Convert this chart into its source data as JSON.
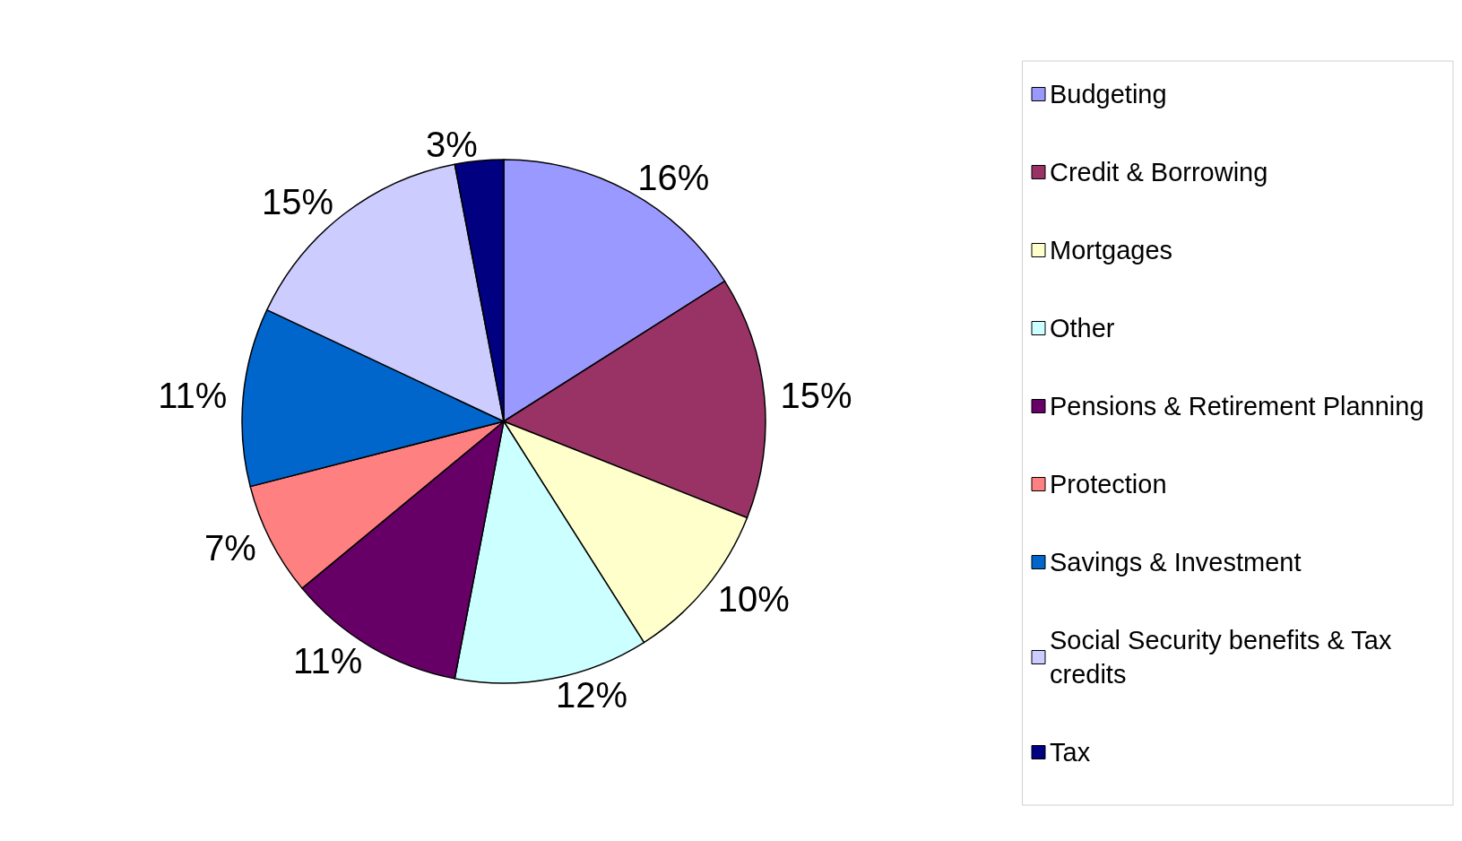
{
  "chart_data": {
    "type": "pie",
    "categories": [
      "Budgeting",
      "Credit & Borrowing",
      "Mortgages",
      "Other",
      "Pensions & Retirement Planning",
      "Protection",
      "Savings & Investment",
      "Social Security benefits & Tax credits",
      "Tax"
    ],
    "values": [
      16,
      15,
      10,
      12,
      11,
      7,
      11,
      15,
      3
    ],
    "value_labels": [
      "16%",
      "15%",
      "10%",
      "12%",
      "11%",
      "7%",
      "11%",
      "15%",
      "3%"
    ],
    "colors": [
      "#9999ff",
      "#993366",
      "#ffffcc",
      "#ccffff",
      "#660066",
      "#ff8080",
      "#0066cc",
      "#ccccff",
      "#000080"
    ],
    "legend": "right"
  }
}
